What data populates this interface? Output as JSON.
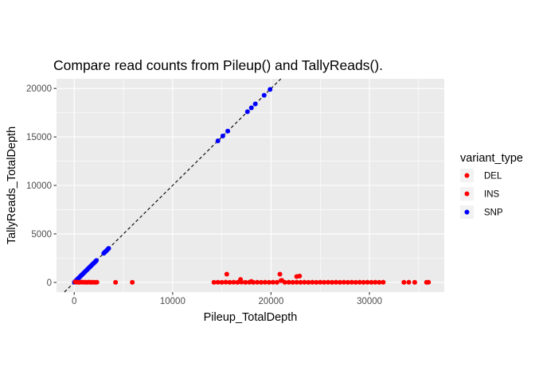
{
  "chart_data": {
    "type": "scatter",
    "title": "Compare read counts from Pileup() and TallyReads().",
    "xlabel": "Pileup_TotalDepth",
    "ylabel": "TallyReads_TotalDepth",
    "xlim": [
      -1800,
      37600
    ],
    "ylim": [
      -1000,
      21000
    ],
    "x_ticks": [
      0,
      10000,
      20000,
      30000
    ],
    "x_tick_labels": [
      "0",
      "10000",
      "20000",
      "30000"
    ],
    "y_ticks": [
      0,
      5000,
      10000,
      15000,
      20000
    ],
    "y_tick_labels": [
      "0",
      "5000",
      "10000",
      "15000",
      "20000"
    ],
    "panel_background": "#ebebeb",
    "grid_color": "#ffffff",
    "grid": true,
    "reference_line": {
      "type": "identity",
      "style": "dashed",
      "color": "#000000"
    },
    "legend": {
      "title": "variant_type",
      "position": "right",
      "entries": [
        {
          "label": "DEL",
          "color": "#ff0000"
        },
        {
          "label": "INS",
          "color": "#ff0000"
        },
        {
          "label": "SNP",
          "color": "#0000ff"
        }
      ]
    },
    "series": [
      {
        "name": "SNP",
        "color": "#0000ff",
        "points": [
          [
            20,
            20
          ],
          [
            80,
            80
          ],
          [
            150,
            150
          ],
          [
            250,
            250
          ],
          [
            350,
            350
          ],
          [
            450,
            450
          ],
          [
            550,
            550
          ],
          [
            650,
            650
          ],
          [
            750,
            750
          ],
          [
            850,
            850
          ],
          [
            950,
            950
          ],
          [
            1050,
            1050
          ],
          [
            1150,
            1150
          ],
          [
            1250,
            1250
          ],
          [
            1350,
            1350
          ],
          [
            1450,
            1450
          ],
          [
            1550,
            1550
          ],
          [
            1650,
            1650
          ],
          [
            1750,
            1750
          ],
          [
            1850,
            1850
          ],
          [
            1950,
            1950
          ],
          [
            2050,
            2050
          ],
          [
            2150,
            2150
          ],
          [
            2250,
            2250
          ],
          [
            3000,
            3000
          ],
          [
            3100,
            3100
          ],
          [
            3200,
            3200
          ],
          [
            3300,
            3300
          ],
          [
            3400,
            3400
          ],
          [
            3500,
            3500
          ],
          [
            14600,
            14600
          ],
          [
            15100,
            15100
          ],
          [
            15600,
            15600
          ],
          [
            17600,
            17600
          ],
          [
            18000,
            18000
          ],
          [
            18400,
            18400
          ],
          [
            19300,
            19300
          ],
          [
            19900,
            19900
          ]
        ]
      },
      {
        "name": "DEL",
        "color": "#ff0000",
        "points": [
          [
            100,
            50
          ],
          [
            300,
            20
          ],
          [
            500,
            10
          ],
          [
            700,
            30
          ],
          [
            900,
            15
          ],
          [
            1100,
            20
          ],
          [
            1300,
            10
          ],
          [
            1500,
            25
          ],
          [
            1700,
            10
          ],
          [
            1900,
            20
          ],
          [
            2100,
            10
          ],
          [
            2300,
            15
          ],
          [
            4200,
            10
          ],
          [
            5900,
            10
          ],
          [
            14200,
            10
          ],
          [
            14600,
            20
          ],
          [
            15000,
            10
          ],
          [
            15400,
            30
          ],
          [
            15800,
            10
          ],
          [
            16200,
            20
          ],
          [
            16600,
            10
          ],
          [
            17000,
            30
          ],
          [
            17400,
            10
          ],
          [
            17800,
            20
          ],
          [
            18200,
            10
          ],
          [
            18600,
            20
          ],
          [
            19000,
            10
          ],
          [
            19400,
            20
          ],
          [
            19800,
            10
          ],
          [
            20200,
            20
          ],
          [
            20600,
            10
          ],
          [
            21000,
            180
          ],
          [
            21400,
            10
          ],
          [
            21800,
            20
          ],
          [
            22200,
            10
          ],
          [
            22600,
            20
          ],
          [
            23000,
            10
          ],
          [
            23400,
            20
          ],
          [
            23800,
            10
          ],
          [
            24200,
            20
          ],
          [
            24600,
            10
          ],
          [
            25000,
            20
          ],
          [
            25400,
            10
          ],
          [
            25800,
            20
          ],
          [
            26200,
            10
          ],
          [
            26600,
            20
          ],
          [
            27000,
            10
          ],
          [
            27400,
            20
          ],
          [
            27800,
            10
          ],
          [
            28200,
            20
          ],
          [
            28600,
            10
          ],
          [
            29000,
            20
          ],
          [
            29400,
            10
          ],
          [
            29800,
            20
          ],
          [
            30200,
            10
          ],
          [
            30600,
            20
          ],
          [
            31000,
            10
          ],
          [
            31400,
            20
          ],
          [
            33500,
            10
          ],
          [
            34000,
            20
          ],
          [
            34600,
            10
          ],
          [
            35800,
            10
          ],
          [
            36000,
            20
          ]
        ]
      },
      {
        "name": "INS",
        "color": "#ff0000",
        "points": [
          [
            15500,
            850
          ],
          [
            20900,
            850
          ],
          [
            22600,
            600
          ],
          [
            22900,
            650
          ],
          [
            16900,
            300
          ],
          [
            21100,
            200
          ],
          [
            18000,
            100
          ]
        ]
      }
    ]
  }
}
